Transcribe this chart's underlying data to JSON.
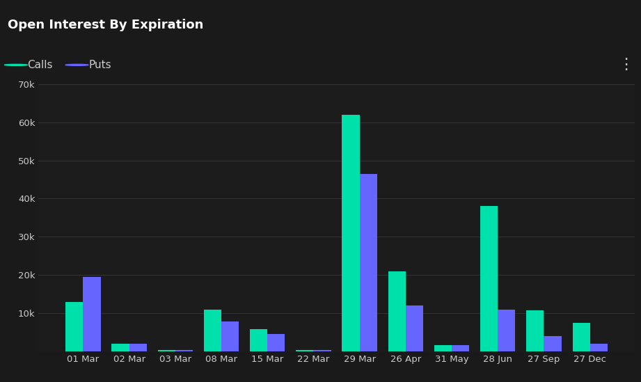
{
  "title": "Open Interest By Expiration",
  "categories": [
    "01 Mar",
    "02 Mar",
    "03 Mar",
    "08 Mar",
    "15 Mar",
    "22 Mar",
    "29 Mar",
    "26 Apr",
    "31 May",
    "28 Jun",
    "27 Sep",
    "27 Dec"
  ],
  "calls": [
    13000,
    2000,
    300,
    11000,
    5800,
    400,
    62000,
    21000,
    1700,
    38000,
    10800,
    7500
  ],
  "puts": [
    19500,
    2000,
    300,
    7800,
    4500,
    400,
    46500,
    12000,
    1700,
    11000,
    4000,
    2000
  ],
  "calls_color": "#00e0aa",
  "puts_color": "#6666ff",
  "background_color": "#1a1a1a",
  "header_color": "#1a1a1a",
  "legend_bg_color": "#222222",
  "plot_bg_color": "#1c1c1c",
  "grid_color": "#333333",
  "text_color": "#cccccc",
  "title_color": "#ffffff",
  "title_fontsize": 13,
  "legend_fontsize": 11,
  "tick_fontsize": 9.5,
  "ylim": [
    0,
    70000
  ],
  "yticks": [
    0,
    10000,
    20000,
    30000,
    40000,
    50000,
    60000,
    70000
  ],
  "ytick_labels": [
    "",
    "10k",
    "20k",
    "30k",
    "40k",
    "50k",
    "60k",
    "70k"
  ],
  "bar_width": 0.38
}
